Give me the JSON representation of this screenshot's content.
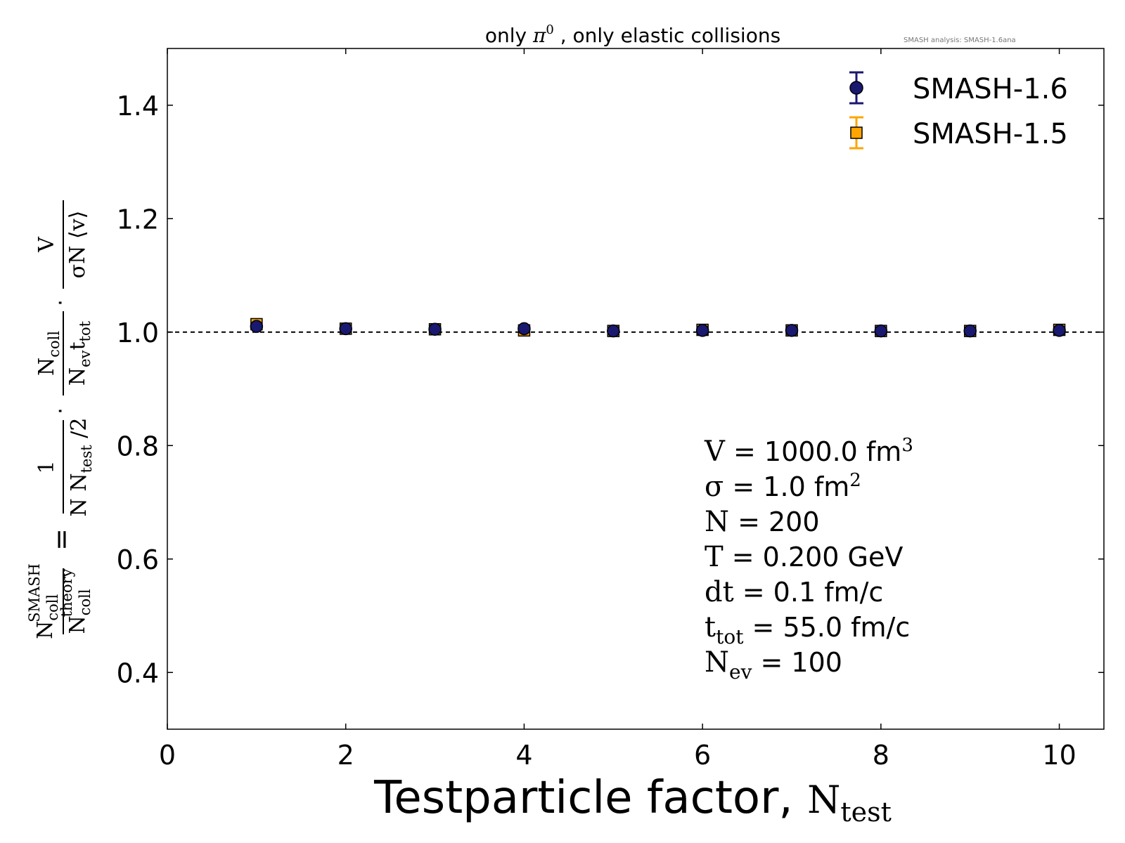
{
  "chart_data": {
    "type": "scatter",
    "title": "only π⁰ , only elastic collisions",
    "title_main": "only ",
    "title_pi": "π",
    "title_sup": "0",
    "title_rest": " , only elastic collisions",
    "watermark": "SMASH analysis: SMASH-1.6ana",
    "xlabel_text": "Testparticle factor, ",
    "xlabel_sym": "N",
    "xlabel_sub": "test",
    "ylabel_parts": {
      "ratio_num": "N",
      "ratio_num_sub": "coll",
      "ratio_num_sup": "SMASH",
      "ratio_den": "N",
      "ratio_den_sub": "coll",
      "ratio_den_sup": "theory",
      "eq": "=",
      "f1_num": "1",
      "f1_den": "N N",
      "f1_den_sub": "test",
      "f1_den_tail": " /2",
      "f2_num": "N",
      "f2_num_sub": "coll",
      "f2_den": "N",
      "f2_den_sub": "ev",
      "f2_den_t": "t",
      "f2_den_tsub": "tot",
      "f3_num": "V",
      "f3_den": "σN ⟨v⟩",
      "dot": "·"
    },
    "xlim": [
      0,
      10.5
    ],
    "ylim": [
      0.3,
      1.5
    ],
    "x_ticks": [
      "0",
      "2",
      "4",
      "6",
      "8",
      "10"
    ],
    "y_ticks": [
      "0.4",
      "0.6",
      "0.8",
      "1.0",
      "1.2",
      "1.4"
    ],
    "reference_line": 1.0,
    "legend_position": "top-right",
    "series": [
      {
        "name": "SMASH-1.6",
        "marker": "circle",
        "color": "#191970",
        "x": [
          1,
          2,
          3,
          4,
          5,
          6,
          7,
          8,
          9,
          10
        ],
        "y": [
          1.01,
          1.006,
          1.005,
          1.006,
          1.002,
          1.003,
          1.003,
          1.002,
          1.002,
          1.003
        ]
      },
      {
        "name": "SMASH-1.5",
        "marker": "square",
        "color": "#FFA500",
        "x": [
          1,
          2,
          3,
          4,
          5,
          6,
          7,
          8,
          9,
          10
        ],
        "y": [
          1.014,
          1.006,
          1.005,
          1.003,
          1.002,
          1.004,
          1.003,
          1.002,
          1.002,
          1.004
        ]
      }
    ],
    "annotations": [
      {
        "sym": "V",
        "sub": "",
        "text": " = 1000.0 fm",
        "sup": "3"
      },
      {
        "sym": "σ",
        "sub": "",
        "text": " = 1.0 fm",
        "sup": "2"
      },
      {
        "sym": "N",
        "sub": "",
        "text": " = 200",
        "sup": ""
      },
      {
        "sym": "T",
        "sub": "",
        "text": " = 0.200 GeV",
        "sup": ""
      },
      {
        "sym": "dt",
        "sub": "",
        "text": " = 0.1 fm/c",
        "sup": ""
      },
      {
        "sym": "t",
        "sub": "tot",
        "text": " = 55.0 fm/c",
        "sup": ""
      },
      {
        "sym": "N",
        "sub": "ev",
        "text": " = 100",
        "sup": ""
      }
    ]
  }
}
